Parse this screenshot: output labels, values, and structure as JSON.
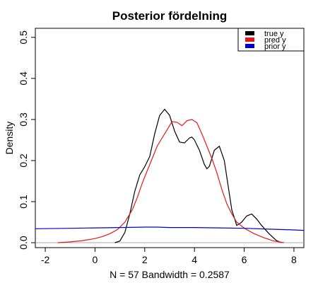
{
  "chart_data": {
    "type": "line",
    "title": "Posterior fördelning",
    "xlabel": "N = 57   Bandwidth = 0.2587",
    "ylabel": "Density",
    "xlim": [
      -2.4,
      8.4
    ],
    "ylim": [
      -0.012,
      0.522
    ],
    "x_ticks": [
      -2,
      0,
      2,
      4,
      6,
      8
    ],
    "y_ticks": [
      0.0,
      0.1,
      0.2,
      0.3,
      0.4,
      0.5
    ],
    "x_tick_labels": [
      "-2",
      "0",
      "2",
      "4",
      "6",
      "8"
    ],
    "y_tick_labels": [
      "0.0",
      "0.1",
      "0.2",
      "0.3",
      "0.4",
      "0.5"
    ],
    "grid": false,
    "baseline": 0,
    "legend": {
      "placement": "top-right",
      "entries": [
        "true y",
        "pred y",
        "prior y"
      ]
    },
    "series": [
      {
        "name": "true y",
        "color": "#000000",
        "points": [
          [
            0.8,
            0.0
          ],
          [
            1.0,
            0.004
          ],
          [
            1.2,
            0.025
          ],
          [
            1.4,
            0.07
          ],
          [
            1.6,
            0.125
          ],
          [
            1.8,
            0.165
          ],
          [
            2.0,
            0.185
          ],
          [
            2.2,
            0.21
          ],
          [
            2.4,
            0.265
          ],
          [
            2.6,
            0.31
          ],
          [
            2.8,
            0.325
          ],
          [
            3.0,
            0.31
          ],
          [
            3.2,
            0.272
          ],
          [
            3.4,
            0.245
          ],
          [
            3.6,
            0.243
          ],
          [
            3.8,
            0.255
          ],
          [
            3.9,
            0.257
          ],
          [
            4.0,
            0.25
          ],
          [
            4.2,
            0.225
          ],
          [
            4.4,
            0.19
          ],
          [
            4.5,
            0.18
          ],
          [
            4.6,
            0.186
          ],
          [
            4.8,
            0.225
          ],
          [
            5.0,
            0.235
          ],
          [
            5.2,
            0.2
          ],
          [
            5.35,
            0.14
          ],
          [
            5.5,
            0.08
          ],
          [
            5.7,
            0.042
          ],
          [
            5.9,
            0.05
          ],
          [
            6.1,
            0.065
          ],
          [
            6.3,
            0.07
          ],
          [
            6.5,
            0.058
          ],
          [
            6.7,
            0.042
          ],
          [
            7.0,
            0.022
          ],
          [
            7.3,
            0.005
          ],
          [
            7.5,
            0.0
          ]
        ]
      },
      {
        "name": "pred y",
        "color": "#e8161b",
        "points": [
          [
            -1.5,
            0.0
          ],
          [
            -1.0,
            0.002
          ],
          [
            -0.5,
            0.005
          ],
          [
            0.0,
            0.01
          ],
          [
            0.3,
            0.015
          ],
          [
            0.6,
            0.022
          ],
          [
            0.9,
            0.032
          ],
          [
            1.2,
            0.05
          ],
          [
            1.5,
            0.08
          ],
          [
            1.7,
            0.11
          ],
          [
            1.9,
            0.145
          ],
          [
            2.1,
            0.175
          ],
          [
            2.3,
            0.205
          ],
          [
            2.5,
            0.235
          ],
          [
            2.7,
            0.255
          ],
          [
            2.9,
            0.275
          ],
          [
            3.1,
            0.295
          ],
          [
            3.3,
            0.293
          ],
          [
            3.5,
            0.285
          ],
          [
            3.7,
            0.297
          ],
          [
            3.9,
            0.3
          ],
          [
            4.1,
            0.292
          ],
          [
            4.3,
            0.265
          ],
          [
            4.5,
            0.235
          ],
          [
            4.7,
            0.205
          ],
          [
            4.9,
            0.17
          ],
          [
            5.1,
            0.13
          ],
          [
            5.3,
            0.095
          ],
          [
            5.5,
            0.07
          ],
          [
            5.7,
            0.05
          ],
          [
            5.9,
            0.04
          ],
          [
            6.1,
            0.032
          ],
          [
            6.4,
            0.022
          ],
          [
            6.8,
            0.012
          ],
          [
            7.2,
            0.004
          ],
          [
            7.6,
            0.0
          ]
        ]
      },
      {
        "name": "prior y",
        "color": "#0000cc",
        "points": [
          [
            -2.4,
            0.034
          ],
          [
            -1.0,
            0.035
          ],
          [
            0.0,
            0.036
          ],
          [
            1.0,
            0.037
          ],
          [
            2.0,
            0.038
          ],
          [
            2.5,
            0.038
          ],
          [
            3.0,
            0.037
          ],
          [
            4.0,
            0.037
          ],
          [
            5.0,
            0.036
          ],
          [
            6.0,
            0.035
          ],
          [
            7.0,
            0.033
          ],
          [
            8.0,
            0.031
          ],
          [
            8.4,
            0.03
          ]
        ]
      }
    ]
  }
}
